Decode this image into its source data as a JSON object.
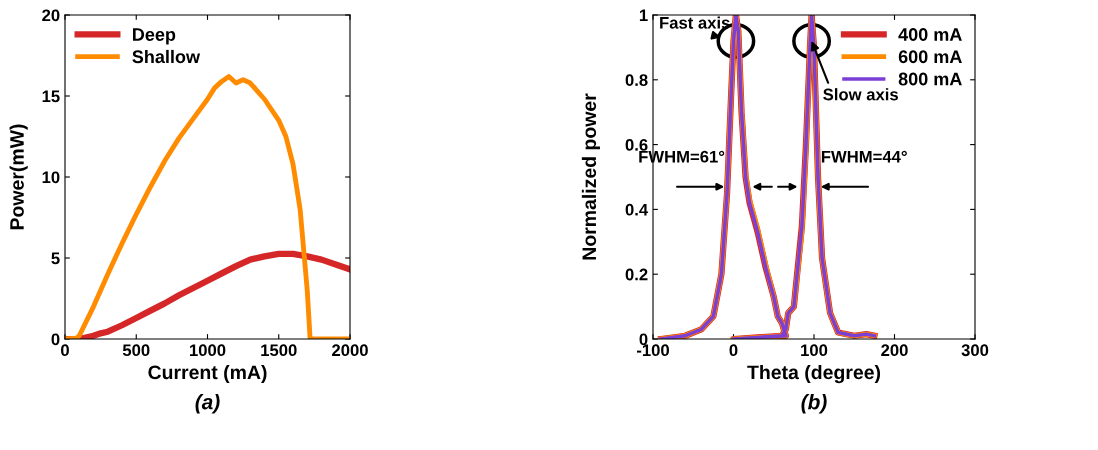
{
  "chart_data": [
    {
      "type": "line",
      "xlabel": "Current (mA)",
      "ylabel": "Power(mW)",
      "xlim": [
        0,
        2000
      ],
      "ylim": [
        0,
        20
      ],
      "xticks": [
        0,
        500,
        1000,
        1500,
        2000
      ],
      "yticks": [
        0,
        5,
        10,
        15,
        20
      ],
      "legend": "top left",
      "grid": false,
      "annotations": [
        "(a)"
      ],
      "series": [
        {
          "name": "Deep",
          "color": "#d62728",
          "x": [
            0,
            100,
            200,
            250,
            300,
            400,
            500,
            600,
            700,
            800,
            900,
            1000,
            1100,
            1200,
            1300,
            1400,
            1500,
            1600,
            1700,
            1800,
            1900,
            2000
          ],
          "values": [
            0,
            0,
            0.2,
            0.35,
            0.45,
            0.85,
            1.3,
            1.75,
            2.2,
            2.7,
            3.15,
            3.6,
            4.05,
            4.5,
            4.9,
            5.1,
            5.25,
            5.25,
            5.1,
            4.9,
            4.6,
            4.3
          ]
        },
        {
          "name": "Shallow",
          "color": "#ff8c00",
          "x": [
            0,
            80,
            100,
            200,
            300,
            400,
            500,
            600,
            700,
            800,
            900,
            1000,
            1050,
            1100,
            1150,
            1200,
            1250,
            1300,
            1400,
            1500,
            1550,
            1600,
            1650,
            1700,
            1720,
            2000
          ],
          "values": [
            0,
            0.05,
            0.2,
            2.0,
            4.0,
            5.9,
            7.7,
            9.4,
            11.0,
            12.4,
            13.6,
            14.8,
            15.5,
            15.9,
            16.2,
            15.8,
            16.0,
            15.8,
            14.8,
            13.5,
            12.5,
            10.8,
            8,
            3,
            0,
            0
          ]
        }
      ]
    },
    {
      "type": "line",
      "xlabel": "Theta (degree)",
      "ylabel": "Normalized power",
      "xlim": [
        -100,
        300
      ],
      "ylim": [
        0,
        1
      ],
      "xticks": [
        -100,
        0,
        100,
        200,
        300
      ],
      "yticks": [
        0,
        0.2,
        0.4,
        0.6,
        0.8,
        1
      ],
      "legend": "top right",
      "grid": false,
      "annotations": [
        {
          "text": "Fast axis",
          "x": 3,
          "y": 0.92
        },
        {
          "text": "Slow axis",
          "x": 97,
          "y": 0.92
        },
        {
          "text": "FWHM=61°",
          "x": -8,
          "y": 0.47
        },
        {
          "text": "FWHM=44°",
          "x": 105,
          "y": 0.47
        },
        "(b)"
      ],
      "series": [
        {
          "name": "400 mA",
          "color": "#d62728",
          "x": [
            -90,
            -60,
            -40,
            -25,
            -15,
            -8,
            -3,
            0,
            3,
            6,
            10,
            15,
            20,
            30,
            40,
            50,
            55,
            60,
            65,
            0,
            30,
            60,
            65,
            68,
            75,
            85,
            90,
            95,
            97,
            100,
            105,
            110,
            120,
            130,
            150,
            165,
            175
          ],
          "values": [
            0,
            0.01,
            0.03,
            0.07,
            0.2,
            0.45,
            0.75,
            0.92,
            1.0,
            0.95,
            0.7,
            0.5,
            0.42,
            0.33,
            0.22,
            0.13,
            0.07,
            0.05,
            0.01,
            0,
            0.005,
            0.01,
            0.03,
            0.08,
            0.1,
            0.35,
            0.6,
            0.9,
            1.0,
            0.9,
            0.5,
            0.25,
            0.08,
            0.02,
            0.01,
            0.015,
            0.01
          ]
        },
        {
          "name": "600 mA",
          "color": "#ff8c00",
          "x": [
            -90,
            -60,
            -40,
            -25,
            -15,
            -8,
            -3,
            0,
            3,
            6,
            10,
            15,
            20,
            30,
            40,
            50,
            55,
            60,
            65,
            0,
            30,
            60,
            65,
            68,
            75,
            85,
            90,
            95,
            97,
            100,
            105,
            110,
            120,
            130,
            150,
            165,
            175
          ],
          "values": [
            0,
            0.01,
            0.03,
            0.07,
            0.2,
            0.45,
            0.75,
            0.92,
            1.0,
            0.95,
            0.71,
            0.51,
            0.43,
            0.34,
            0.23,
            0.13,
            0.07,
            0.05,
            0.01,
            0,
            0.005,
            0.01,
            0.03,
            0.08,
            0.1,
            0.33,
            0.58,
            0.9,
            1.0,
            0.9,
            0.5,
            0.25,
            0.08,
            0.02,
            0.01,
            0.015,
            0.01
          ]
        },
        {
          "name": "800 mA",
          "color": "#7b3fd6",
          "x": [
            -90,
            -60,
            -40,
            -25,
            -15,
            -8,
            -3,
            0,
            3,
            6,
            10,
            15,
            20,
            30,
            40,
            50,
            55,
            60,
            65,
            0,
            30,
            60,
            65,
            68,
            75,
            85,
            90,
            95,
            97,
            100,
            105,
            110,
            120,
            130,
            150,
            165,
            175
          ],
          "values": [
            0,
            0.01,
            0.03,
            0.07,
            0.2,
            0.45,
            0.75,
            0.92,
            1.0,
            0.95,
            0.7,
            0.5,
            0.42,
            0.33,
            0.22,
            0.13,
            0.07,
            0.05,
            0.01,
            0,
            0.005,
            0.01,
            0.03,
            0.08,
            0.1,
            0.35,
            0.6,
            0.9,
            1.0,
            0.9,
            0.5,
            0.25,
            0.08,
            0.02,
            0.01,
            0.015,
            0.01
          ]
        }
      ]
    }
  ]
}
